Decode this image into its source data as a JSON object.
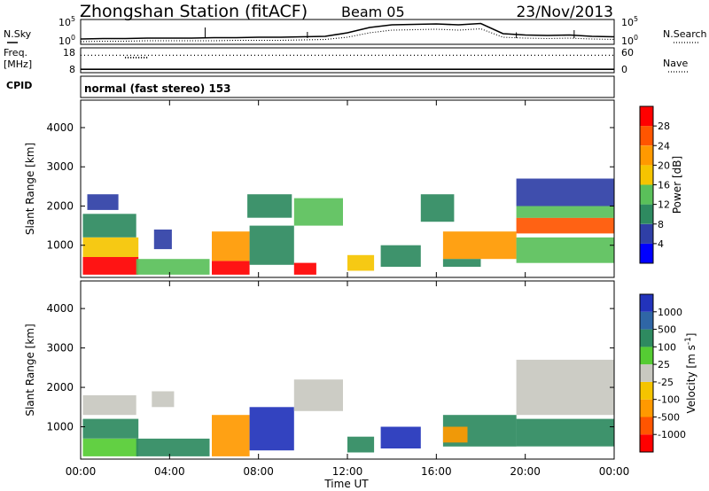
{
  "header": {
    "station": "Zhongshan Station (fitACF)",
    "beam": "Beam 05",
    "date": "23/Nov/2013"
  },
  "chart_data": [
    {
      "type": "line",
      "panel": "noise",
      "left_label": "N.Sky",
      "right_label": "N.Search",
      "left_ticks": [
        "10^5",
        "10^0"
      ],
      "right_ticks": [
        "10^5",
        "10^0"
      ],
      "x_hours": [
        0,
        1,
        2,
        3,
        4,
        5,
        6,
        7,
        8,
        9,
        10,
        11,
        12,
        13,
        14,
        15,
        16,
        17,
        18,
        19,
        20,
        21,
        22,
        23,
        24
      ],
      "series": [
        {
          "values": [
            1.0,
            1.1,
            1.1,
            1.2,
            1.2,
            1.2,
            1.3,
            1.3,
            1.4,
            1.4,
            1.5,
            1.6,
            2.4,
            3.6,
            4.2,
            4.3,
            4.4,
            4.2,
            4.5,
            2.2,
            1.9,
            1.8,
            1.9,
            1.6,
            1.5
          ]
        },
        {
          "values": [
            0.4,
            0.5,
            0.5,
            0.6,
            0.6,
            0.6,
            0.6,
            0.7,
            0.7,
            0.7,
            0.8,
            0.9,
            1.4,
            2.4,
            3.0,
            3.1,
            3.2,
            3.0,
            3.3,
            1.4,
            1.2,
            1.1,
            1.2,
            1.0,
            0.9
          ]
        }
      ],
      "spikes": [
        {
          "x": 5.6,
          "y": 3.6
        },
        {
          "x": 10.2,
          "y": 2.6
        },
        {
          "x": 19.6,
          "y": 2.5
        },
        {
          "x": 22.2,
          "y": 3.0
        }
      ]
    },
    {
      "type": "line",
      "panel": "frequency",
      "left_label_1": "Freq.",
      "left_label_2": "[MHz]",
      "right_label": "Nave",
      "left_ticks": [
        "18",
        "8"
      ],
      "right_ticks": [
        "60",
        "0"
      ],
      "frequency_mhz": 9.1,
      "nave_typical": 43,
      "nave_dip": {
        "x_start": 2.0,
        "x_end": 3.0,
        "value": 37
      }
    },
    {
      "type": "table",
      "panel": "cpid",
      "label": "CPID",
      "program": "normal (fast stereo) 153"
    },
    {
      "type": "heatmap",
      "panel": "power",
      "ylabel": "Slant Range [km]",
      "yticks": [
        "1000",
        "2000",
        "3000",
        "4000"
      ],
      "ylim": [
        180,
        4700
      ],
      "colorbar": {
        "label": "Power [dB]",
        "ticks": [
          "4",
          "8",
          "12",
          "16",
          "20",
          "24",
          "28"
        ],
        "colors": [
          "#0000ff",
          "#2f3fa6",
          "#2e8a60",
          "#5ac05a",
          "#f5c400",
          "#ff9900",
          "#ff5500",
          "#ff0000"
        ],
        "scale": [
          0,
          32
        ]
      },
      "regions": [
        {
          "t0": 0.1,
          "t1": 2.6,
          "r0": 250,
          "r1": 700,
          "level": 28
        },
        {
          "t0": 0.1,
          "t1": 2.6,
          "r0": 700,
          "r1": 1200,
          "level": 18
        },
        {
          "t0": 0.1,
          "t1": 2.5,
          "r0": 1200,
          "r1": 1800,
          "level": 8
        },
        {
          "t0": 0.3,
          "t1": 1.7,
          "r0": 1900,
          "r1": 2300,
          "level": 6
        },
        {
          "t0": 2.5,
          "t1": 5.8,
          "r0": 250,
          "r1": 650,
          "level": 12
        },
        {
          "t0": 3.3,
          "t1": 4.1,
          "r0": 900,
          "r1": 1400,
          "level": 6
        },
        {
          "t0": 5.9,
          "t1": 7.6,
          "r0": 250,
          "r1": 600,
          "level": 28
        },
        {
          "t0": 5.9,
          "t1": 7.6,
          "r0": 600,
          "r1": 1350,
          "level": 20
        },
        {
          "t0": 7.6,
          "t1": 9.6,
          "r0": 500,
          "r1": 1500,
          "level": 10
        },
        {
          "t0": 7.5,
          "t1": 9.5,
          "r0": 1700,
          "r1": 2300,
          "level": 10
        },
        {
          "t0": 9.6,
          "t1": 10.6,
          "r0": 250,
          "r1": 550,
          "level": 28
        },
        {
          "t0": 9.6,
          "t1": 11.8,
          "r0": 1500,
          "r1": 2200,
          "level": 14
        },
        {
          "t0": 12.0,
          "t1": 13.2,
          "r0": 350,
          "r1": 750,
          "level": 18
        },
        {
          "t0": 13.5,
          "t1": 15.3,
          "r0": 450,
          "r1": 1000,
          "level": 10
        },
        {
          "t0": 15.3,
          "t1": 16.8,
          "r0": 1600,
          "r1": 2300,
          "level": 10
        },
        {
          "t0": 16.3,
          "t1": 19.6,
          "r0": 650,
          "r1": 1350,
          "level": 20
        },
        {
          "t0": 16.3,
          "t1": 18.0,
          "r0": 450,
          "r1": 650,
          "level": 10
        },
        {
          "t0": 19.6,
          "t1": 24.0,
          "r0": 550,
          "r1": 1200,
          "level": 12
        },
        {
          "t0": 19.6,
          "t1": 24.0,
          "r0": 1300,
          "r1": 1700,
          "level": 24
        },
        {
          "t0": 19.6,
          "t1": 24.0,
          "r0": 1700,
          "r1": 2000,
          "level": 12
        },
        {
          "t0": 19.6,
          "t1": 24.0,
          "r0": 2000,
          "r1": 2700,
          "level": 6
        }
      ]
    },
    {
      "type": "heatmap",
      "panel": "velocity",
      "ylabel": "Slant Range [km]",
      "yticks": [
        "1000",
        "2000",
        "3000",
        "4000"
      ],
      "ylim": [
        180,
        4700
      ],
      "colorbar": {
        "label": "Velocity [m s^-1]",
        "ticks": [
          "1000",
          "500",
          "100",
          "25",
          "-25",
          "-100",
          "-500",
          "-1000"
        ],
        "colors": [
          "#2233bb",
          "#2f66a6",
          "#2e8a60",
          "#55cc33",
          "#c8c8c0",
          "#f5c400",
          "#ff9900",
          "#ff5500",
          "#ff0000"
        ]
      },
      "regions": [
        {
          "t0": 0.1,
          "t1": 2.6,
          "r0": 250,
          "r1": 700,
          "level": "green"
        },
        {
          "t0": 0.1,
          "t1": 2.6,
          "r0": 700,
          "r1": 1200,
          "level": "darkgreen"
        },
        {
          "t0": 0.1,
          "t1": 2.5,
          "r0": 1300,
          "r1": 1800,
          "level": "gray"
        },
        {
          "t0": 2.5,
          "t1": 5.8,
          "r0": 250,
          "r1": 700,
          "level": "darkgreen"
        },
        {
          "t0": 3.2,
          "t1": 4.2,
          "r0": 1500,
          "r1": 1900,
          "level": "gray"
        },
        {
          "t0": 5.9,
          "t1": 7.6,
          "r0": 250,
          "r1": 1300,
          "level": "orange"
        },
        {
          "t0": 7.6,
          "t1": 9.6,
          "r0": 400,
          "r1": 1500,
          "level": "blue"
        },
        {
          "t0": 9.6,
          "t1": 11.8,
          "r0": 1400,
          "r1": 2200,
          "level": "gray"
        },
        {
          "t0": 12.0,
          "t1": 13.2,
          "r0": 350,
          "r1": 750,
          "level": "darkgreen"
        },
        {
          "t0": 13.5,
          "t1": 15.3,
          "r0": 450,
          "r1": 1000,
          "level": "blue"
        },
        {
          "t0": 16.3,
          "t1": 19.6,
          "r0": 500,
          "r1": 1300,
          "level": "darkgreen"
        },
        {
          "t0": 16.3,
          "t1": 17.4,
          "r0": 600,
          "r1": 1000,
          "level": "orange"
        },
        {
          "t0": 19.6,
          "t1": 24.0,
          "r0": 500,
          "r1": 1200,
          "level": "darkgreen"
        },
        {
          "t0": 19.6,
          "t1": 24.0,
          "r0": 1300,
          "r1": 2700,
          "level": "gray"
        }
      ]
    }
  ],
  "xaxis": {
    "label": "Time UT",
    "ticks": [
      "00:00",
      "04:00",
      "08:00",
      "12:00",
      "16:00",
      "20:00",
      "00:00"
    ]
  }
}
